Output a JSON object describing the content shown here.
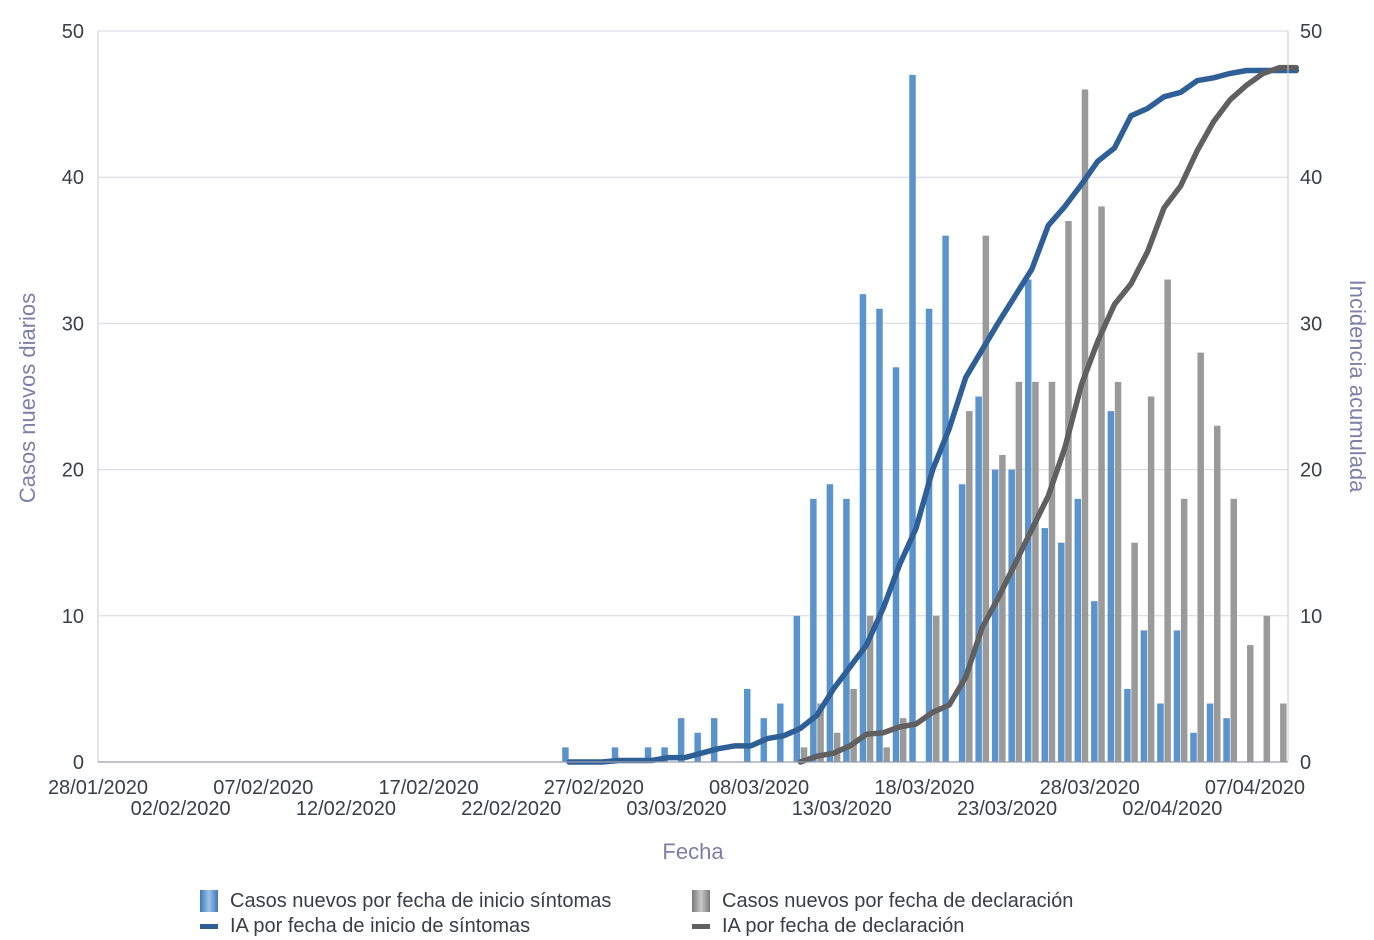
{
  "chart_data": {
    "type": "bar",
    "xlabel": "Fecha",
    "ylabel_left": "Casos nuevos diarios",
    "ylabel_right": "Incidencia acumulada",
    "ylim_left": [
      0,
      50
    ],
    "ylim_right": [
      0,
      50
    ],
    "yticks": [
      0,
      10,
      20,
      30,
      40,
      50
    ],
    "grid": "horizontal",
    "legend_position": "bottom",
    "x_tick_labels": [
      "28/01/2020",
      "02/02/2020",
      "07/02/2020",
      "12/02/2020",
      "17/02/2020",
      "22/02/2020",
      "27/02/2020",
      "03/03/2020",
      "08/03/2020",
      "13/03/2020",
      "18/03/2020",
      "23/03/2020",
      "28/03/2020",
      "02/04/2020",
      "07/04/2020"
    ],
    "bar_series": [
      {
        "name": "Casos nuevos por fecha de inicio síntomas",
        "color": "#5b94cc",
        "points": [
          [
            "25/02/2020",
            1
          ],
          [
            "28/02/2020",
            1
          ],
          [
            "01/03/2020",
            1
          ],
          [
            "02/03/2020",
            1
          ],
          [
            "03/03/2020",
            3
          ],
          [
            "04/03/2020",
            2
          ],
          [
            "05/03/2020",
            3
          ],
          [
            "07/03/2020",
            5
          ],
          [
            "08/03/2020",
            3
          ],
          [
            "09/03/2020",
            4
          ],
          [
            "10/03/2020",
            10
          ],
          [
            "11/03/2020",
            18
          ],
          [
            "12/03/2020",
            19
          ],
          [
            "13/03/2020",
            18
          ],
          [
            "14/03/2020",
            32
          ],
          [
            "15/03/2020",
            31
          ],
          [
            "16/03/2020",
            27
          ],
          [
            "17/03/2020",
            47
          ],
          [
            "18/03/2020",
            31
          ],
          [
            "19/03/2020",
            36
          ],
          [
            "20/03/2020",
            19
          ],
          [
            "21/03/2020",
            25
          ],
          [
            "22/03/2020",
            20
          ],
          [
            "23/03/2020",
            20
          ],
          [
            "24/03/2020",
            33
          ],
          [
            "25/03/2020",
            16
          ],
          [
            "26/03/2020",
            15
          ],
          [
            "27/03/2020",
            18
          ],
          [
            "28/03/2020",
            11
          ],
          [
            "29/03/2020",
            24
          ],
          [
            "30/03/2020",
            5
          ],
          [
            "31/03/2020",
            9
          ],
          [
            "01/04/2020",
            4
          ],
          [
            "02/04/2020",
            9
          ],
          [
            "03/04/2020",
            2
          ],
          [
            "04/04/2020",
            4
          ],
          [
            "05/04/2020",
            3
          ]
        ]
      },
      {
        "name": "Casos nuevos por fecha de declaración",
        "color": "#9a9a9a",
        "points": [
          [
            "10/03/2020",
            1
          ],
          [
            "11/03/2020",
            4
          ],
          [
            "12/03/2020",
            2
          ],
          [
            "13/03/2020",
            5
          ],
          [
            "14/03/2020",
            10
          ],
          [
            "15/03/2020",
            1
          ],
          [
            "16/03/2020",
            3
          ],
          [
            "18/03/2020",
            10
          ],
          [
            "20/03/2020",
            24
          ],
          [
            "21/03/2020",
            36
          ],
          [
            "22/03/2020",
            21
          ],
          [
            "23/03/2020",
            26
          ],
          [
            "24/03/2020",
            26
          ],
          [
            "25/03/2020",
            26
          ],
          [
            "26/03/2020",
            37
          ],
          [
            "27/03/2020",
            46
          ],
          [
            "28/03/2020",
            38
          ],
          [
            "29/03/2020",
            26
          ],
          [
            "30/03/2020",
            15
          ],
          [
            "31/03/2020",
            25
          ],
          [
            "01/04/2020",
            33
          ],
          [
            "02/04/2020",
            18
          ],
          [
            "03/04/2020",
            28
          ],
          [
            "04/04/2020",
            23
          ],
          [
            "05/04/2020",
            18
          ],
          [
            "06/04/2020",
            8
          ],
          [
            "07/04/2020",
            10
          ],
          [
            "08/04/2020",
            4
          ]
        ]
      }
    ],
    "line_series": [
      {
        "name": "IA por fecha de inicio de síntomas",
        "color": "#2e5f96",
        "points": [
          [
            "25/02/2020",
            0
          ],
          [
            "26/02/2020",
            0
          ],
          [
            "27/02/2020",
            0
          ],
          [
            "28/02/2020",
            0.1
          ],
          [
            "29/02/2020",
            0.1
          ],
          [
            "01/03/2020",
            0.1
          ],
          [
            "02/03/2020",
            0.3
          ],
          [
            "03/03/2020",
            0.3
          ],
          [
            "04/03/2020",
            0.6
          ],
          [
            "05/03/2020",
            0.9
          ],
          [
            "06/03/2020",
            1.1
          ],
          [
            "07/03/2020",
            1.1
          ],
          [
            "08/03/2020",
            1.6
          ],
          [
            "09/03/2020",
            1.8
          ],
          [
            "10/03/2020",
            2.3
          ],
          [
            "11/03/2020",
            3.2
          ],
          [
            "12/03/2020",
            5
          ],
          [
            "13/03/2020",
            6.5
          ],
          [
            "14/03/2020",
            8
          ],
          [
            "15/03/2020",
            10.5
          ],
          [
            "16/03/2020",
            13.5
          ],
          [
            "17/03/2020",
            16
          ],
          [
            "18/03/2020",
            20
          ],
          [
            "19/03/2020",
            22.8
          ],
          [
            "20/03/2020",
            26.3
          ],
          [
            "21/03/2020",
            28.2
          ],
          [
            "22/03/2020",
            30.1
          ],
          [
            "23/03/2020",
            31.9
          ],
          [
            "24/03/2020",
            33.7
          ],
          [
            "25/03/2020",
            36.7
          ],
          [
            "26/03/2020",
            38.0
          ],
          [
            "27/03/2020",
            39.5
          ],
          [
            "28/03/2020",
            41.1
          ],
          [
            "29/03/2020",
            42.0
          ],
          [
            "30/03/2020",
            44.2
          ],
          [
            "31/03/2020",
            44.7
          ],
          [
            "01/04/2020",
            45.5
          ],
          [
            "02/04/2020",
            45.8
          ],
          [
            "03/04/2020",
            46.6
          ],
          [
            "04/04/2020",
            46.8
          ],
          [
            "05/04/2020",
            47.1
          ],
          [
            "06/04/2020",
            47.3
          ],
          [
            "07/04/2020",
            47.3
          ],
          [
            "08/04/2020",
            47.3
          ],
          [
            "09/04/2020",
            47.3
          ]
        ]
      },
      {
        "name": "IA por fecha de declaración",
        "color": "#606060",
        "points": [
          [
            "10/03/2020",
            0
          ],
          [
            "11/03/2020",
            0.4
          ],
          [
            "12/03/2020",
            0.6
          ],
          [
            "13/03/2020",
            1.1
          ],
          [
            "14/03/2020",
            1.9
          ],
          [
            "15/03/2020",
            2.0
          ],
          [
            "16/03/2020",
            2.4
          ],
          [
            "17/03/2020",
            2.6
          ],
          [
            "18/03/2020",
            3.4
          ],
          [
            "19/03/2020",
            3.9
          ],
          [
            "20/03/2020",
            5.8
          ],
          [
            "21/03/2020",
            9.2
          ],
          [
            "22/03/2020",
            11.3
          ],
          [
            "23/03/2020",
            13.6
          ],
          [
            "24/03/2020",
            15.9
          ],
          [
            "25/03/2020",
            18.2
          ],
          [
            "26/03/2020",
            21.5
          ],
          [
            "27/03/2020",
            25.8
          ],
          [
            "28/03/2020",
            28.8
          ],
          [
            "29/03/2020",
            31.3
          ],
          [
            "30/03/2020",
            32.7
          ],
          [
            "31/03/2020",
            34.9
          ],
          [
            "01/04/2020",
            37.9
          ],
          [
            "02/04/2020",
            39.4
          ],
          [
            "03/04/2020",
            41.8
          ],
          [
            "04/04/2020",
            43.8
          ],
          [
            "05/04/2020",
            45.3
          ],
          [
            "06/04/2020",
            46.3
          ],
          [
            "07/04/2020",
            47.1
          ],
          [
            "08/04/2020",
            47.5
          ],
          [
            "09/04/2020",
            47.5
          ]
        ]
      }
    ]
  }
}
